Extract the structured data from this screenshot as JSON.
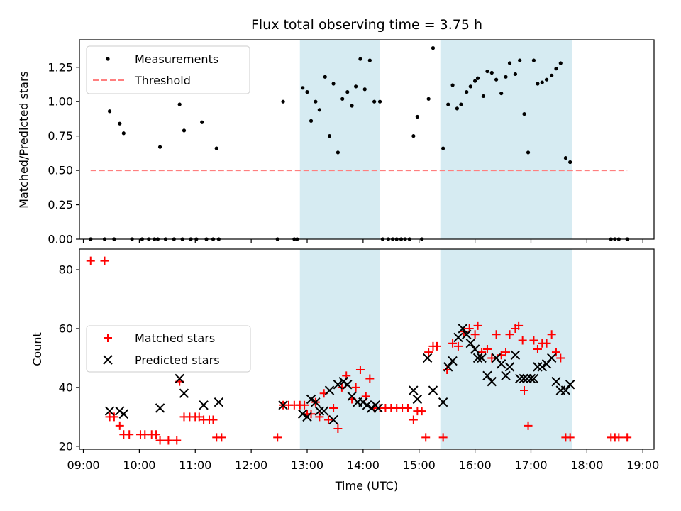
{
  "figure": {
    "title": "Flux total observing time = 3.75 h"
  },
  "chart_data": [
    {
      "type": "scatter",
      "panel": "top",
      "xlabel": "",
      "ylabel": "Matched/Predicted stars",
      "xlim": [
        8.93,
        19.2
      ],
      "ylim": [
        0.0,
        1.45
      ],
      "yticks": [
        0.0,
        0.25,
        0.5,
        0.75,
        1.0,
        1.25
      ],
      "ytick_labels": [
        "0.00",
        "0.25",
        "0.50",
        "0.75",
        "1.00",
        "1.25"
      ],
      "legend_position": "upper-left",
      "shaded_intervals": [
        [
          12.87,
          14.3
        ],
        [
          15.38,
          17.73
        ]
      ],
      "series": [
        {
          "name": "Measurements",
          "marker": "dot",
          "color": "#000000",
          "points": [
            [
              9.13,
              0.0
            ],
            [
              9.38,
              0.0
            ],
            [
              9.55,
              0.0
            ],
            [
              9.47,
              0.93
            ],
            [
              9.65,
              0.84
            ],
            [
              9.72,
              0.77
            ],
            [
              9.87,
              0.0
            ],
            [
              10.05,
              0.0
            ],
            [
              10.17,
              0.0
            ],
            [
              10.27,
              0.0
            ],
            [
              10.33,
              0.0
            ],
            [
              10.37,
              0.67
            ],
            [
              10.47,
              0.0
            ],
            [
              10.62,
              0.0
            ],
            [
              10.77,
              0.0
            ],
            [
              10.72,
              0.98
            ],
            [
              10.8,
              0.79
            ],
            [
              10.92,
              0.0
            ],
            [
              11.02,
              0.0
            ],
            [
              11.12,
              0.85
            ],
            [
              11.2,
              0.0
            ],
            [
              11.32,
              0.0
            ],
            [
              11.42,
              0.0
            ],
            [
              11.38,
              0.66
            ],
            [
              12.47,
              0.0
            ],
            [
              12.57,
              1.0
            ],
            [
              12.77,
              0.0
            ],
            [
              12.82,
              0.0
            ],
            [
              12.92,
              1.1
            ],
            [
              13.0,
              1.07
            ],
            [
              13.07,
              0.86
            ],
            [
              13.15,
              1.0
            ],
            [
              13.22,
              0.94
            ],
            [
              13.32,
              1.18
            ],
            [
              13.4,
              0.75
            ],
            [
              13.47,
              1.13
            ],
            [
              13.55,
              0.63
            ],
            [
              13.63,
              1.02
            ],
            [
              13.72,
              1.07
            ],
            [
              13.8,
              0.97
            ],
            [
              13.87,
              1.11
            ],
            [
              13.95,
              1.31
            ],
            [
              14.03,
              1.09
            ],
            [
              14.12,
              1.3
            ],
            [
              14.2,
              1.0
            ],
            [
              14.3,
              1.0
            ],
            [
              14.35,
              0.0
            ],
            [
              14.45,
              0.0
            ],
            [
              14.53,
              0.0
            ],
            [
              14.6,
              0.0
            ],
            [
              14.68,
              0.0
            ],
            [
              14.75,
              0.0
            ],
            [
              14.83,
              0.0
            ],
            [
              14.9,
              0.75
            ],
            [
              14.97,
              0.89
            ],
            [
              15.05,
              0.0
            ],
            [
              15.17,
              1.02
            ],
            [
              15.25,
              1.39
            ],
            [
              15.43,
              0.66
            ],
            [
              15.52,
              0.98
            ],
            [
              15.6,
              1.12
            ],
            [
              15.68,
              0.95
            ],
            [
              15.75,
              0.98
            ],
            [
              15.85,
              1.07
            ],
            [
              15.92,
              1.11
            ],
            [
              16.0,
              1.15
            ],
            [
              16.05,
              1.17
            ],
            [
              16.15,
              1.04
            ],
            [
              16.22,
              1.22
            ],
            [
              16.3,
              1.21
            ],
            [
              16.38,
              1.16
            ],
            [
              16.47,
              1.06
            ],
            [
              16.55,
              1.18
            ],
            [
              16.62,
              1.28
            ],
            [
              16.72,
              1.2
            ],
            [
              16.8,
              1.3
            ],
            [
              16.88,
              0.91
            ],
            [
              16.95,
              0.63
            ],
            [
              17.05,
              1.3
            ],
            [
              17.12,
              1.13
            ],
            [
              17.2,
              1.14
            ],
            [
              17.28,
              1.16
            ],
            [
              17.37,
              1.19
            ],
            [
              17.45,
              1.24
            ],
            [
              17.53,
              1.28
            ],
            [
              17.62,
              0.59
            ],
            [
              17.7,
              0.56
            ],
            [
              18.43,
              0.0
            ],
            [
              18.5,
              0.0
            ],
            [
              18.57,
              0.0
            ],
            [
              18.72,
              0.0
            ]
          ]
        },
        {
          "name": "Threshold",
          "marker": "dashed-line",
          "color": "#ff7f7f",
          "points": [
            [
              9.13,
              0.5
            ],
            [
              18.72,
              0.5
            ]
          ]
        }
      ]
    },
    {
      "type": "scatter",
      "panel": "bottom",
      "xlabel": "Time (UTC)",
      "ylabel": "Count",
      "xlim": [
        8.93,
        19.2
      ],
      "ylim": [
        19,
        87
      ],
      "yticks": [
        20,
        40,
        60,
        80
      ],
      "ytick_labels": [
        "20",
        "40",
        "60",
        "80"
      ],
      "xticks": [
        9,
        10,
        11,
        12,
        13,
        14,
        15,
        16,
        17,
        18,
        19
      ],
      "xtick_labels": [
        "09:00",
        "10:00",
        "11:00",
        "12:00",
        "13:00",
        "14:00",
        "15:00",
        "16:00",
        "17:00",
        "18:00",
        "19:00"
      ],
      "legend_position": "center-left",
      "shaded_intervals": [
        [
          12.87,
          14.3
        ],
        [
          15.38,
          17.73
        ]
      ],
      "series": [
        {
          "name": "Matched stars",
          "marker": "plus",
          "color": "#ff0000",
          "points": [
            [
              9.13,
              83
            ],
            [
              9.38,
              83
            ],
            [
              9.47,
              30
            ],
            [
              9.55,
              30
            ],
            [
              9.65,
              27
            ],
            [
              9.72,
              24
            ],
            [
              9.82,
              24
            ],
            [
              10.02,
              24
            ],
            [
              10.1,
              24
            ],
            [
              10.22,
              24
            ],
            [
              10.3,
              24
            ],
            [
              10.37,
              22
            ],
            [
              10.52,
              22
            ],
            [
              10.67,
              22
            ],
            [
              10.72,
              42
            ],
            [
              10.8,
              30
            ],
            [
              10.9,
              30
            ],
            [
              11.0,
              30
            ],
            [
              11.07,
              30
            ],
            [
              11.15,
              29
            ],
            [
              11.25,
              29
            ],
            [
              11.32,
              29
            ],
            [
              11.38,
              23
            ],
            [
              11.47,
              23
            ],
            [
              12.47,
              23
            ],
            [
              12.57,
              34
            ],
            [
              12.67,
              34
            ],
            [
              12.77,
              34
            ],
            [
              12.87,
              34
            ],
            [
              12.95,
              34
            ],
            [
              13.0,
              31
            ],
            [
              13.07,
              31
            ],
            [
              13.15,
              35
            ],
            [
              13.22,
              30
            ],
            [
              13.3,
              38
            ],
            [
              13.38,
              29
            ],
            [
              13.47,
              33
            ],
            [
              13.55,
              26
            ],
            [
              13.62,
              40
            ],
            [
              13.7,
              44
            ],
            [
              13.8,
              36
            ],
            [
              13.87,
              40
            ],
            [
              13.95,
              46
            ],
            [
              14.05,
              37
            ],
            [
              14.12,
              43
            ],
            [
              14.2,
              33
            ],
            [
              14.3,
              33
            ],
            [
              14.4,
              33
            ],
            [
              14.5,
              33
            ],
            [
              14.6,
              33
            ],
            [
              14.7,
              33
            ],
            [
              14.8,
              33
            ],
            [
              14.9,
              29
            ],
            [
              14.97,
              32
            ],
            [
              15.05,
              32
            ],
            [
              15.12,
              23
            ],
            [
              15.17,
              52
            ],
            [
              15.25,
              54
            ],
            [
              15.32,
              54
            ],
            [
              15.43,
              23
            ],
            [
              15.5,
              46
            ],
            [
              15.6,
              55
            ],
            [
              15.7,
              54
            ],
            [
              15.8,
              59
            ],
            [
              15.9,
              60
            ],
            [
              16.0,
              58
            ],
            [
              16.05,
              61
            ],
            [
              16.12,
              52
            ],
            [
              16.22,
              53
            ],
            [
              16.3,
              50
            ],
            [
              16.38,
              58
            ],
            [
              16.47,
              51
            ],
            [
              16.55,
              52
            ],
            [
              16.62,
              58
            ],
            [
              16.72,
              60
            ],
            [
              16.78,
              61
            ],
            [
              16.85,
              56
            ],
            [
              16.88,
              39
            ],
            [
              16.95,
              27
            ],
            [
              17.05,
              56
            ],
            [
              17.12,
              53
            ],
            [
              17.2,
              55
            ],
            [
              17.28,
              55
            ],
            [
              17.37,
              58
            ],
            [
              17.45,
              52
            ],
            [
              17.53,
              50
            ],
            [
              17.62,
              23
            ],
            [
              17.7,
              23
            ],
            [
              18.43,
              23
            ],
            [
              18.5,
              23
            ],
            [
              18.57,
              23
            ],
            [
              18.72,
              23
            ]
          ]
        },
        {
          "name": "Predicted stars",
          "marker": "x",
          "color": "#000000",
          "points": [
            [
              9.47,
              32
            ],
            [
              9.65,
              32
            ],
            [
              9.72,
              31
            ],
            [
              10.37,
              33
            ],
            [
              10.72,
              43
            ],
            [
              10.8,
              38
            ],
            [
              11.15,
              34
            ],
            [
              11.42,
              35
            ],
            [
              12.57,
              34
            ],
            [
              12.92,
              31
            ],
            [
              13.0,
              30
            ],
            [
              13.07,
              36
            ],
            [
              13.15,
              35
            ],
            [
              13.22,
              32
            ],
            [
              13.3,
              32
            ],
            [
              13.4,
              39
            ],
            [
              13.47,
              29
            ],
            [
              13.55,
              41
            ],
            [
              13.65,
              42
            ],
            [
              13.72,
              41
            ],
            [
              13.8,
              37
            ],
            [
              13.9,
              35
            ],
            [
              14.0,
              35
            ],
            [
              14.07,
              34
            ],
            [
              14.15,
              33
            ],
            [
              14.22,
              34
            ],
            [
              14.27,
              33
            ],
            [
              14.9,
              39
            ],
            [
              14.97,
              36
            ],
            [
              15.15,
              50
            ],
            [
              15.25,
              39
            ],
            [
              15.43,
              35
            ],
            [
              15.52,
              47
            ],
            [
              15.6,
              49
            ],
            [
              15.7,
              57
            ],
            [
              15.78,
              60
            ],
            [
              15.85,
              58
            ],
            [
              15.92,
              55
            ],
            [
              16.0,
              53
            ],
            [
              16.05,
              50
            ],
            [
              16.12,
              50
            ],
            [
              16.22,
              44
            ],
            [
              16.3,
              42
            ],
            [
              16.38,
              50
            ],
            [
              16.47,
              48
            ],
            [
              16.55,
              44
            ],
            [
              16.62,
              47
            ],
            [
              16.72,
              51
            ],
            [
              16.8,
              43
            ],
            [
              16.87,
              43
            ],
            [
              16.93,
              43
            ],
            [
              17.0,
              43
            ],
            [
              17.05,
              43
            ],
            [
              17.12,
              47
            ],
            [
              17.2,
              47
            ],
            [
              17.28,
              48
            ],
            [
              17.37,
              50
            ],
            [
              17.45,
              42
            ],
            [
              17.53,
              39
            ],
            [
              17.62,
              39
            ],
            [
              17.7,
              41
            ]
          ]
        }
      ]
    }
  ]
}
